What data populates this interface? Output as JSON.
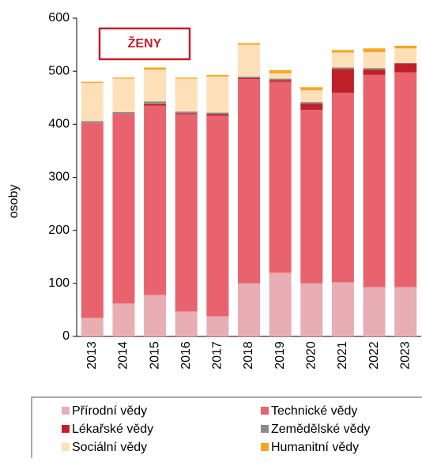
{
  "chart_data": {
    "type": "bar",
    "stacked": true,
    "annotation": "ŽENY",
    "y_label": "osoby",
    "categories": [
      "2013",
      "2014",
      "2015",
      "2016",
      "2017",
      "2018",
      "2019",
      "2020",
      "2021",
      "2022",
      "2023"
    ],
    "series": [
      {
        "name": "Přírodní vědy",
        "color": "#e8aeb3",
        "values": [
          35,
          62,
          78,
          47,
          38,
          100,
          120,
          100,
          102,
          93,
          93
        ]
      },
      {
        "name": "Technické vědy",
        "color": "#e8636e",
        "values": [
          368,
          358,
          357,
          372,
          378,
          385,
          360,
          327,
          357,
          400,
          405
        ]
      },
      {
        "name": "Lékařské vědy",
        "color": "#c0202a",
        "values": [
          0,
          0,
          3,
          2,
          3,
          2,
          3,
          12,
          45,
          10,
          17
        ]
      },
      {
        "name": "Zemědělské vědy",
        "color": "#8a8a8a",
        "values": [
          3,
          3,
          5,
          3,
          3,
          3,
          3,
          3,
          3,
          3,
          0
        ]
      },
      {
        "name": "Sociální vědy",
        "color": "#fde0b8",
        "values": [
          72,
          63,
          60,
          62,
          68,
          60,
          10,
          22,
          28,
          30,
          28
        ]
      },
      {
        "name": "Humanitní vědy",
        "color": "#f5a623",
        "values": [
          2,
          2,
          4,
          2,
          3,
          3,
          6,
          6,
          5,
          7,
          5
        ]
      }
    ],
    "ylim": [
      0,
      600
    ],
    "yticks": [
      0,
      100,
      200,
      300,
      400,
      500,
      600
    ]
  }
}
